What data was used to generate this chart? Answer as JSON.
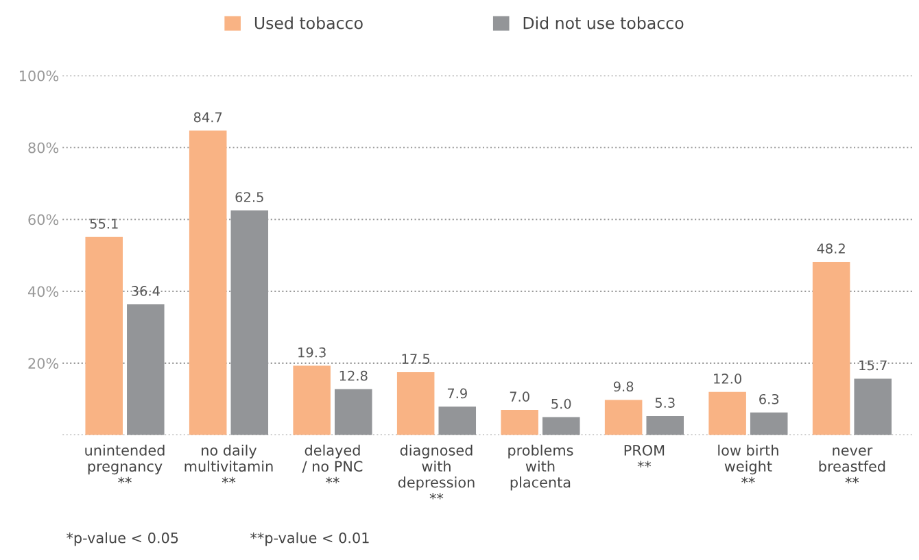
{
  "chart_data": {
    "type": "bar",
    "categories": [
      "unintended\npregnancy\n**",
      "no daily\nmultivitamin\n**",
      "delayed\n/ no PNC\n**",
      "diagnosed\nwith\ndepression\n**",
      "problems\nwith\nplacenta",
      "PROM\n**",
      "low birth\nweight\n**",
      "never\nbreastfed\n**"
    ],
    "series": [
      {
        "name": "Used tobacco",
        "color": "#f9b384",
        "values": [
          55.1,
          84.7,
          19.3,
          17.5,
          7.0,
          9.8,
          12.0,
          48.2
        ],
        "value_labels": [
          "55.1",
          "84.7",
          "19.3",
          "17.5",
          "7.0",
          "9.8",
          "12.0",
          "48.2"
        ]
      },
      {
        "name": "Did not use tobacco",
        "color": "#939598",
        "values": [
          36.4,
          62.5,
          12.8,
          7.9,
          5.0,
          5.3,
          6.3,
          15.7
        ],
        "value_labels": [
          "36.4",
          "62.5",
          "12.8",
          "7.9",
          "5.0",
          "5.3",
          "6.3",
          "15.7"
        ]
      }
    ],
    "ylim": [
      0,
      100
    ],
    "yticks": [
      {
        "value": 0,
        "label": null
      },
      {
        "value": 20,
        "label": "20%"
      },
      {
        "value": 40,
        "label": "40%"
      },
      {
        "value": 60,
        "label": "60%"
      },
      {
        "value": 80,
        "label": "80%"
      },
      {
        "value": 100,
        "label": "100%"
      }
    ],
    "grid": "y",
    "line_style": "dotted",
    "legend": "top",
    "annotations": [
      "*p-value < 0.05",
      "**p-value < 0.01"
    ]
  }
}
